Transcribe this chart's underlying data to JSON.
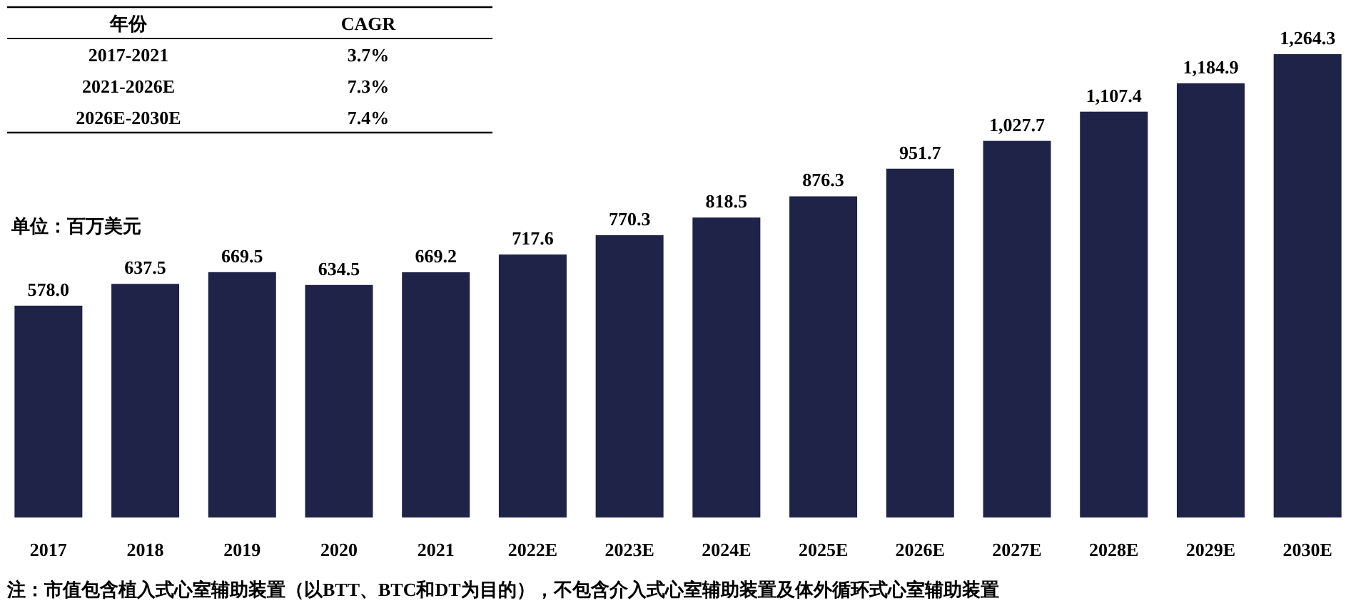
{
  "chart_data": {
    "type": "bar",
    "categories": [
      "2017",
      "2018",
      "2019",
      "2020",
      "2021",
      "2022E",
      "2023E",
      "2024E",
      "2025E",
      "2026E",
      "2027E",
      "2028E",
      "2029E",
      "2030E"
    ],
    "values": [
      578.0,
      637.5,
      669.5,
      634.5,
      669.2,
      717.6,
      770.3,
      818.5,
      876.3,
      951.7,
      1027.7,
      1107.4,
      1184.9,
      1264.3
    ],
    "value_labels": [
      "578.0",
      "637.5",
      "669.5",
      "634.5",
      "669.2",
      "717.6",
      "770.3",
      "818.5",
      "876.3",
      "951.7",
      "1,027.7",
      "1,107.4",
      "1,184.9",
      "1,264.3"
    ],
    "color": "#1f2347",
    "annotations": [
      "年份",
      "CAGR",
      "2017-2021",
      "3.7%",
      "2021-2026E",
      "7.3%",
      "2026E-2030E",
      "7.4%",
      "单位：百万美元",
      "注：市值包含植入式心室辅助装置（以BTT、BTC和DT为目的），不包含介入式心室辅助装置及体外循环式心室辅助装置"
    ]
  }
}
